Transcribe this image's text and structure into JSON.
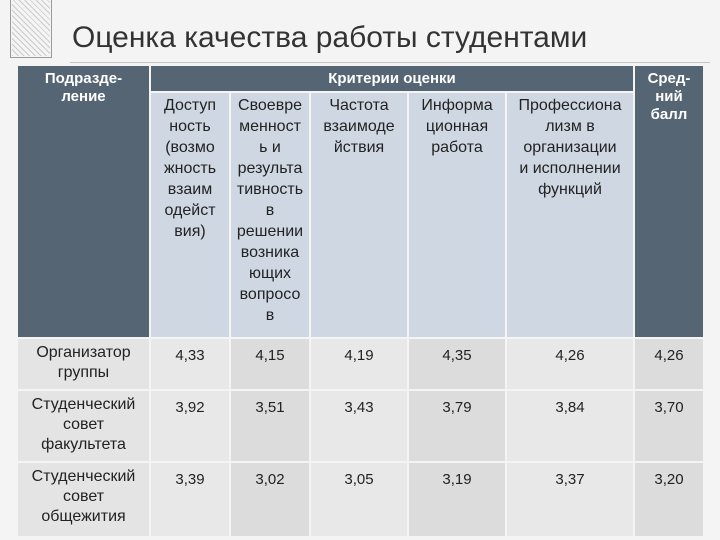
{
  "title": "Оценка качества работы студентами",
  "table": {
    "header": {
      "unit": "Подразде-\nление",
      "criteria": "Критерии оценки",
      "average": "Сред-\nний\nбалл"
    },
    "criteria_columns": [
      "Доступ\nность\n(возмо\nжность\nвзаим\nодейст\nвия)",
      "Своевре\nменност\nь и\nрезульта\nтивность\nв\nрешении\nвозника\nющих\nвопросо\nв",
      "Частота\nвзаимоде\nйствия",
      "Информа\nционная\nработа",
      "Профессиона\nлизм в\nорганизации\nи исполнении\nфункций"
    ],
    "rows": [
      {
        "name": "Организатор\nгруппы",
        "values": [
          "4,33",
          "4,15",
          "4,19",
          "4,35",
          "4,26",
          "4,26"
        ]
      },
      {
        "name": "Студенческий\nсовет\nфакультета",
        "values": [
          "3,92",
          "3,51",
          "3,43",
          "3,79",
          "3,84",
          "3,70"
        ]
      },
      {
        "name": "Студенческий\nсовет\nобщежития",
        "values": [
          "3,39",
          "3,02",
          "3,05",
          "3,19",
          "3,37",
          "3,20"
        ]
      }
    ]
  }
}
